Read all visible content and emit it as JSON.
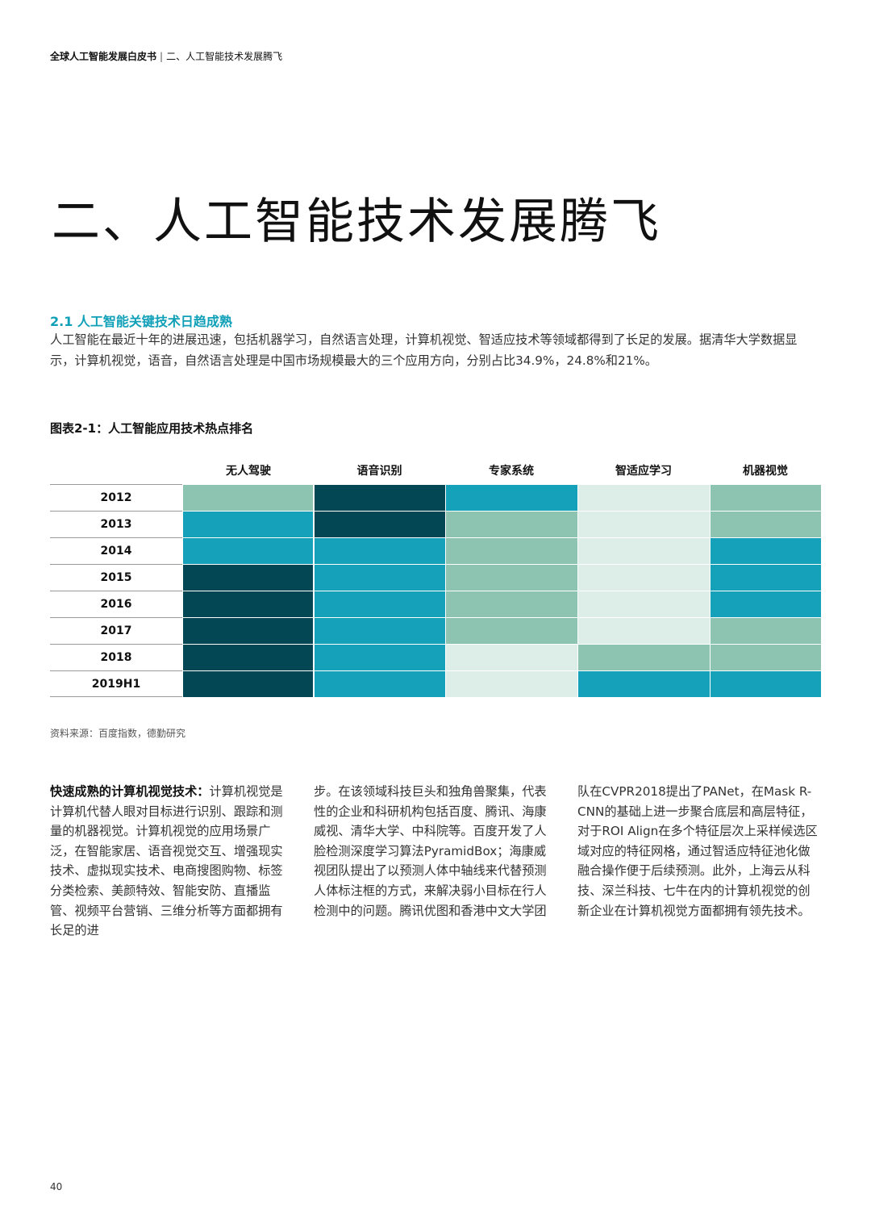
{
  "header": {
    "report_title": "全球人工智能发展白皮书",
    "separator": "|",
    "section": "二、人工智能技术发展腾飞"
  },
  "page_title": "二、人工智能技术发展腾飞",
  "section": {
    "title": "2.1 人工智能关键技术日趋成熟",
    "intro": "人工智能在最近十年的进展迅速，包括机器学习，自然语言处理，计算机视觉、智适应技术等领域都得到了长足的发展。据清华大学数据显示，计算机视觉，语音，自然语言处理是中国市场规模最大的三个应用方向，分别占比34.9%，24.8%和21%。"
  },
  "chart_title": "图表2-1：人工智能应用技术热点排名",
  "chart_data": {
    "type": "heatmap",
    "title": "图表2-1：人工智能应用技术热点排名",
    "columns": [
      "无人驾驶",
      "语音识别",
      "专家系统",
      "智适应学习",
      "机器视觉"
    ],
    "rows": [
      "2012",
      "2013",
      "2014",
      "2015",
      "2016",
      "2017",
      "2018",
      "2019H1"
    ],
    "scale_note": "Darker shade = higher rank (4 = darkest, 1 = lightest)",
    "values": [
      [
        2,
        4,
        3,
        1,
        2
      ],
      [
        3,
        4,
        2,
        1,
        2
      ],
      [
        3,
        3,
        2,
        1,
        3
      ],
      [
        4,
        3,
        2,
        1,
        3
      ],
      [
        4,
        3,
        2,
        1,
        3
      ],
      [
        4,
        3,
        2,
        1,
        2
      ],
      [
        4,
        3,
        1,
        2,
        2
      ],
      [
        4,
        3,
        1,
        3,
        3
      ]
    ],
    "colors": {
      "1": "#dceee7",
      "2": "#8dc3b1",
      "3": "#14a1b9",
      "4": "#034654"
    }
  },
  "source": "资料来源：百度指数，德勤研究",
  "body": {
    "lead": "快速成熟的计算机视觉技术",
    "lead_colon": "：",
    "col1": "计算机视觉是计算机代替人眼对目标进行识别、跟踪和测量的机器视觉。计算机视觉的应用场景广泛，在智能家居、语音视觉交互、增强现实技术、虚拟现实技术、电商搜图购物、标签分类检索、美颜特效、智能安防、直播监管、视频平台营销、三维分析等方面都拥有长足的进",
    "col2": "步。在该领域科技巨头和独角兽聚集，代表性的企业和科研机构包括百度、腾讯、海康威视、清华大学、中科院等。百度开发了人脸检测深度学习算法PyramidBox；海康威视团队提出了以预测人体中轴线来代替预测人体标注框的方式，来解决弱小目标在行人检测中的问题。腾讯优图和香港中文大学团",
    "col3": "队在CVPR2018提出了PANet，在Mask R-CNN的基础上进一步聚合底层和高层特征，对于ROI Align在多个特征层次上采样候选区域对应的特征网格，通过智适应特征池化做融合操作便于后续预测。此外，上海云从科技、深兰科技、七牛在内的计算机视觉的创新企业在计算机视觉方面都拥有领先技术。"
  },
  "page_number": "40"
}
